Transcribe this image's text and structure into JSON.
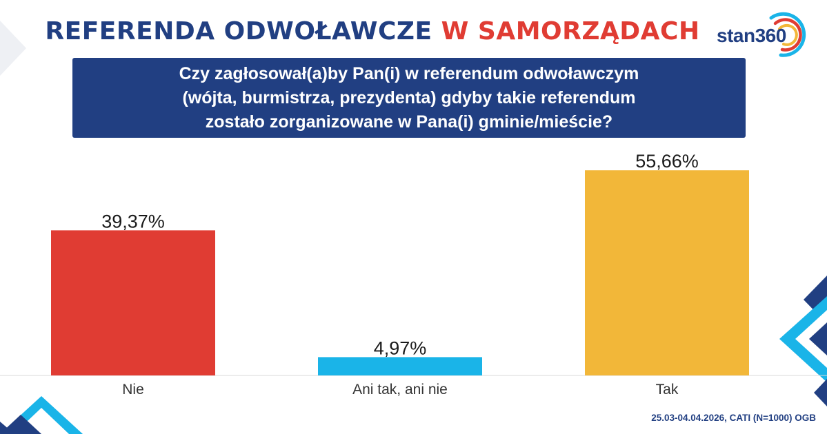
{
  "header": {
    "title_part1": "REFERENDA ODWOŁAWCZE",
    "title_part2": "W SAMORZĄDACH"
  },
  "logo": {
    "text": "stan360"
  },
  "question": {
    "lines": [
      "Czy zagłosował(a)by Pan(i) w referendum odwoławczym",
      "(wójta, burmistrza, prezydenta) gdyby takie referendum",
      "zostało zorganizowane w Pana(i) gminie/mieście?"
    ]
  },
  "footer": {
    "note": "25.03-04.04.2026, CATI (N=1000) OGB"
  },
  "colors": {
    "navy": "#213f82",
    "red": "#e03c33",
    "cyan": "#1ab4e8",
    "yellow": "#f2b739"
  },
  "chart_data": {
    "type": "bar",
    "categories": [
      "Nie",
      "Ani tak, ani nie",
      "Tak"
    ],
    "values": [
      39.37,
      4.97,
      55.66
    ],
    "labels": [
      "39,37%",
      "4,97%",
      "55,66%"
    ],
    "colors": [
      "#e03c33",
      "#1ab4e8",
      "#f2b739"
    ],
    "ylim": [
      0,
      60
    ],
    "grid": false,
    "legend": "none"
  }
}
